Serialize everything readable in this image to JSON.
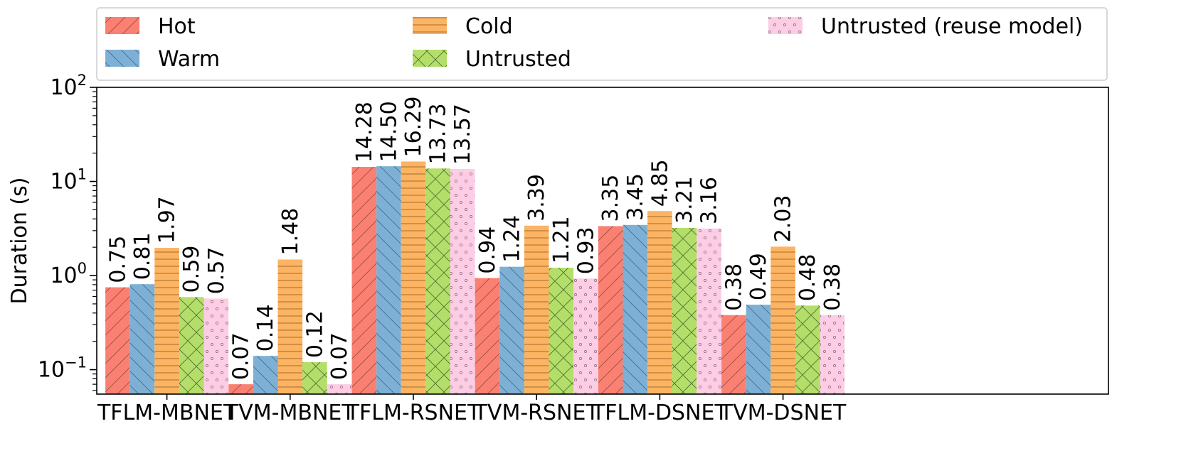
{
  "chart_data": {
    "type": "bar",
    "title": "",
    "xlabel": "",
    "ylabel": "Duration (s)",
    "yscale": "log",
    "ylim": [
      0.055,
      100
    ],
    "yticks": [
      {
        "base": "10",
        "exp": "−1",
        "value": 0.1
      },
      {
        "base": "10",
        "exp": "0",
        "value": 1
      },
      {
        "base": "10",
        "exp": "1",
        "value": 10
      },
      {
        "base": "10",
        "exp": "2",
        "value": 100
      }
    ],
    "legend_position": "top",
    "categories": [
      "TFLM-MBNET",
      "TVM-MBNET",
      "TFLM-RSNET",
      "TVM-RSNET",
      "TFLM-DSNET",
      "TVM-DSNET"
    ],
    "series": [
      {
        "name": "Hot",
        "color": "#fa8072",
        "hatch": "diagonal-up",
        "values": [
          0.75,
          0.07,
          14.28,
          0.94,
          3.35,
          0.38
        ]
      },
      {
        "name": "Warm",
        "color": "#7eb0d5",
        "hatch": "diagonal-down",
        "values": [
          0.81,
          0.14,
          14.5,
          1.24,
          3.45,
          0.49
        ]
      },
      {
        "name": "Cold",
        "color": "#fdb462",
        "hatch": "horizontal",
        "values": [
          1.97,
          1.48,
          16.29,
          3.39,
          4.85,
          2.03
        ]
      },
      {
        "name": "Untrusted",
        "color": "#b3de69",
        "hatch": "crosshatch",
        "values": [
          0.59,
          0.12,
          13.73,
          1.21,
          3.21,
          0.48
        ]
      },
      {
        "name": "Untrusted (reuse model)",
        "color": "#fccde5",
        "hatch": "dots",
        "values": [
          0.57,
          0.07,
          13.57,
          0.93,
          3.16,
          0.38
        ]
      }
    ],
    "data_labels": [
      [
        "0.75",
        "0.81",
        "1.97",
        "0.59",
        "0.57"
      ],
      [
        "0.07",
        "0.14",
        "1.48",
        "0.12",
        "0.07"
      ],
      [
        "14.28",
        "14.50",
        "16.29",
        "13.73",
        "13.57"
      ],
      [
        "0.94",
        "1.24",
        "3.39",
        "1.21",
        "0.93"
      ],
      [
        "3.35",
        "3.45",
        "4.85",
        "3.21",
        "3.16"
      ],
      [
        "0.38",
        "0.49",
        "2.03",
        "0.48",
        "0.38"
      ]
    ]
  }
}
